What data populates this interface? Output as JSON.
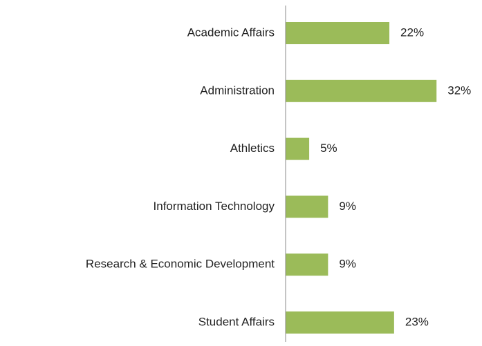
{
  "chart_data": {
    "type": "barh",
    "categories": [
      "Academic Affairs",
      "Administration",
      "Athletics",
      "Information Technology",
      "Research & Economic Development",
      "Student Affairs"
    ],
    "values": [
      22,
      32,
      5,
      9,
      9,
      23
    ],
    "value_labels": [
      "22%",
      "32%",
      "5%",
      "9%",
      "9%",
      "23%"
    ],
    "color": "#9bbb59"
  }
}
